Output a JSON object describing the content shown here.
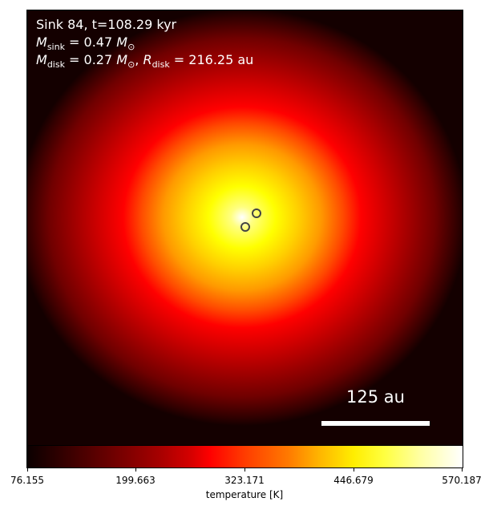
{
  "annotation": {
    "line1": "Sink 84, t=108.29 kyr",
    "msink_value": "0.47",
    "mdisk_value": "0.27",
    "rdisk_value": "216.25",
    "rdisk_unit": "au"
  },
  "scale_bar": {
    "label": "125 au"
  },
  "colorbar": {
    "label": "temperature [K]",
    "ticks": [
      "76.155",
      "199.663",
      "323.171",
      "446.679",
      "570.187"
    ]
  },
  "sinks": [
    "sink-1",
    "sink-2"
  ]
}
